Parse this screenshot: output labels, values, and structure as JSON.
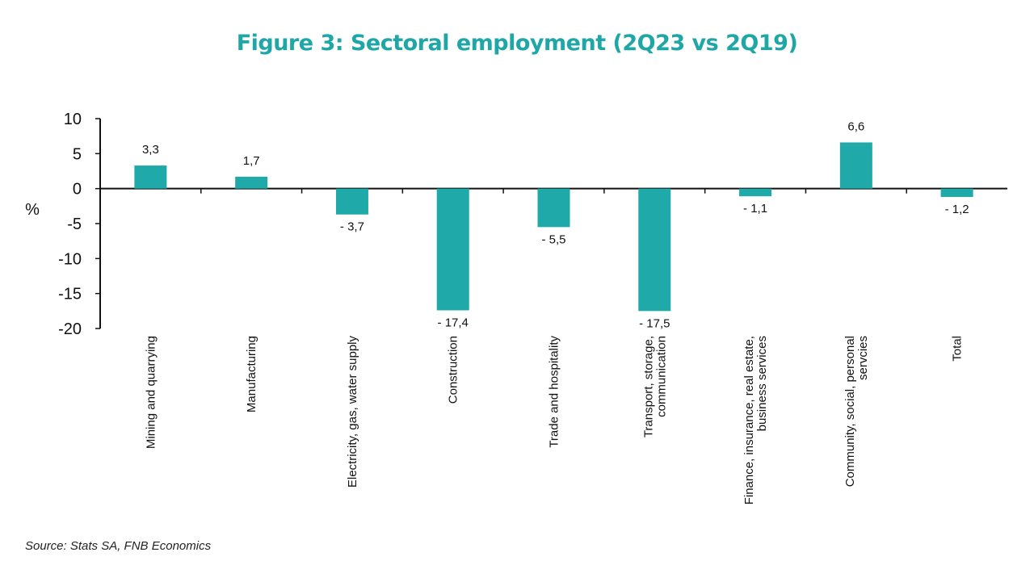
{
  "title": "Figure 3: Sectoral employment (2Q23 vs 2Q19)",
  "source": "Source: Stats SA, FNB Economics",
  "chart_data": {
    "type": "bar",
    "title": "Figure 3: Sectoral employment (2Q23 vs 2Q19)",
    "ylabel": "%",
    "xlabel": "",
    "ylim": [
      -20,
      10
    ],
    "yticks": [
      10,
      5,
      0,
      -5,
      -10,
      -15,
      -20
    ],
    "grid": false,
    "legend": "none",
    "bar_color": "#1fa9a9",
    "categories": [
      [
        "Mining and quarrying"
      ],
      [
        "Manufacturing"
      ],
      [
        "Electricity, gas, water supply"
      ],
      [
        "Construction"
      ],
      [
        "Trade and hospitality"
      ],
      [
        "Transport, storage,",
        "communication"
      ],
      [
        "Finance, insurance, real estate,",
        "business services"
      ],
      [
        "Community, social, personal",
        "servcies"
      ],
      [
        "Total"
      ]
    ],
    "values": [
      3.3,
      1.7,
      -3.7,
      -17.4,
      -5.5,
      -17.5,
      -1.1,
      6.6,
      -1.2
    ],
    "data_labels": [
      "3,3",
      "1,7",
      "- 3,7",
      "- 17,4",
      "- 5,5",
      "- 17,5",
      "- 1,1",
      "6,6",
      "- 1,2"
    ]
  }
}
